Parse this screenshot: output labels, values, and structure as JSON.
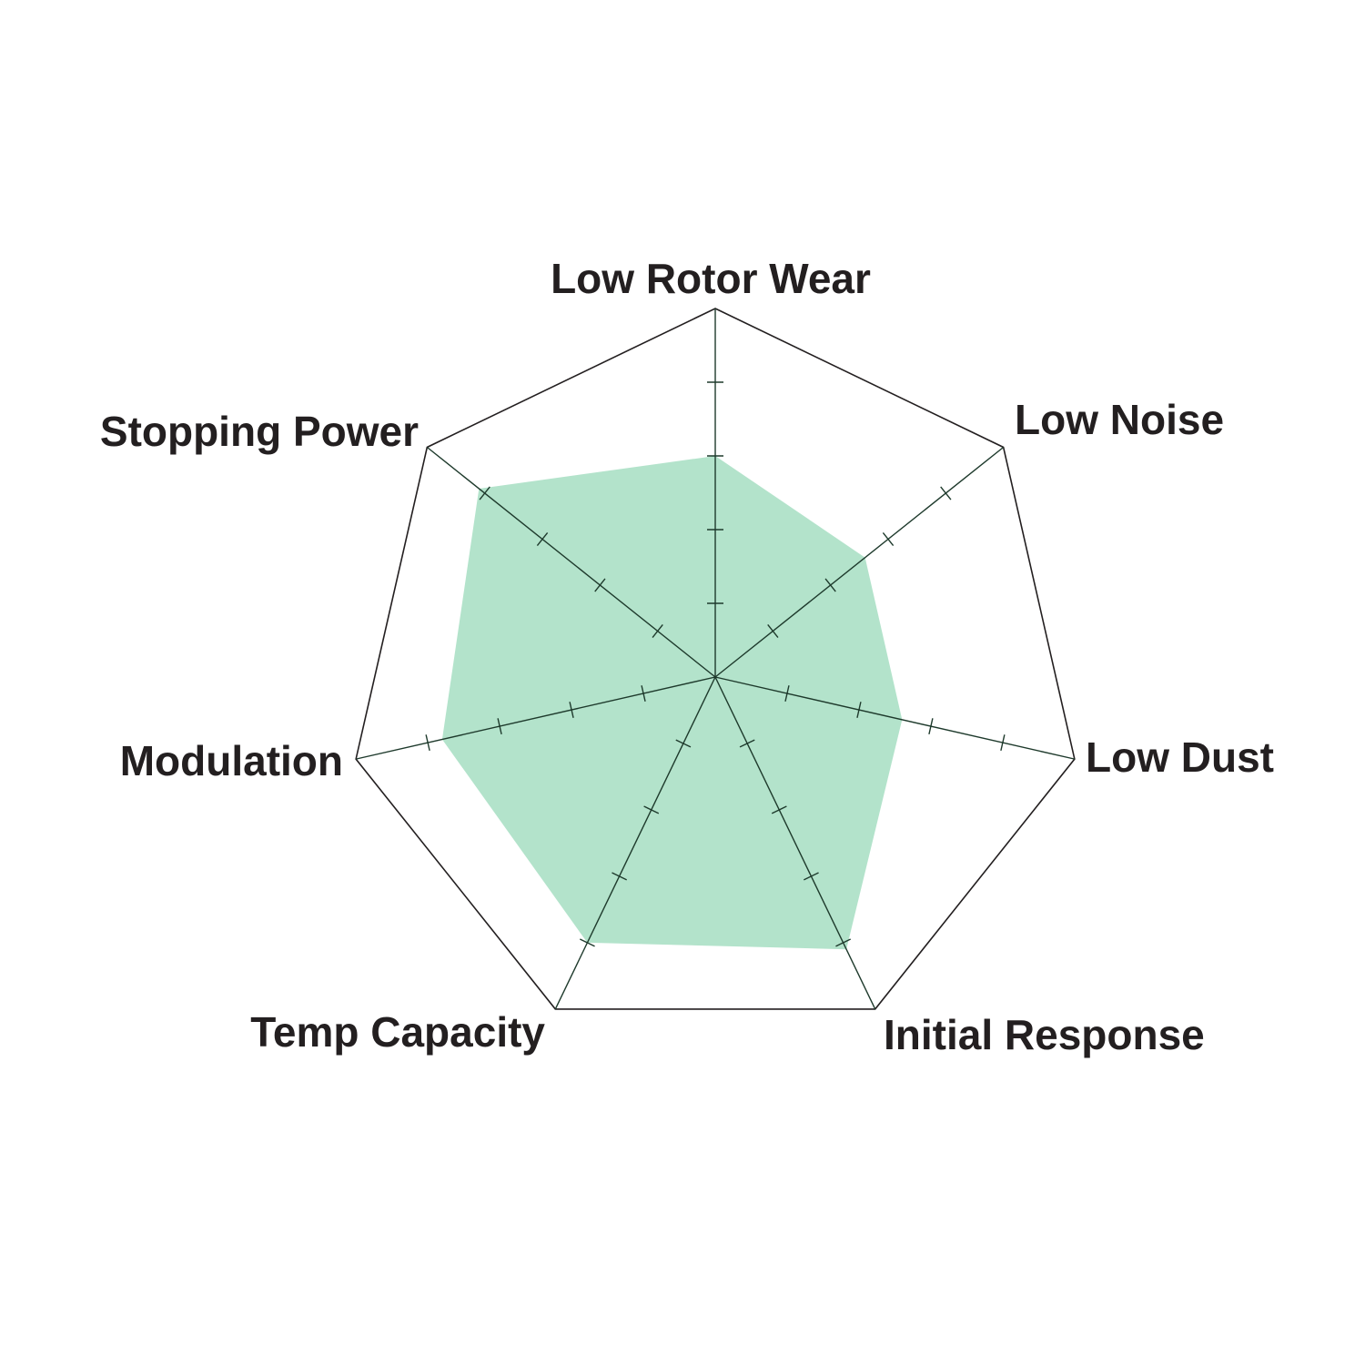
{
  "chart_data": {
    "type": "radar",
    "title": "",
    "categories": [
      "Low Rotor Wear",
      "Low Noise",
      "Low Dust",
      "Initial Response",
      "Temp Capacity",
      "Modulation",
      "Stopping Power"
    ],
    "values": [
      3,
      2.6,
      2.6,
      4.1,
      4,
      3.8,
      4.1
    ],
    "rlim": [
      0,
      5
    ],
    "ticks": [
      1,
      2,
      3,
      4,
      5
    ],
    "grid": "outer polygon only",
    "colors": {
      "fill": "#b3e3cb",
      "axis": "#1e3a2c",
      "outline": "#231f20",
      "label": "#231f20"
    }
  }
}
